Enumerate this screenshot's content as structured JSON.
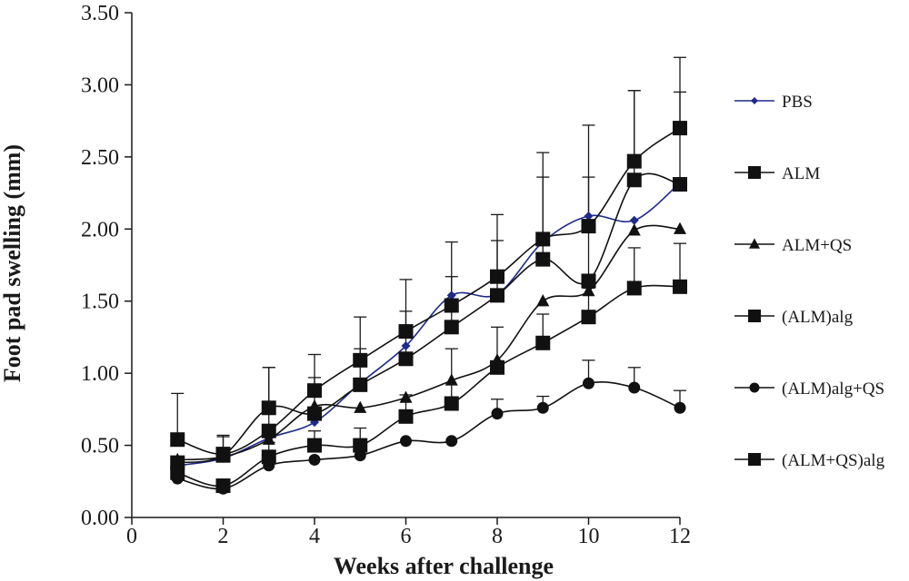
{
  "chart_data": {
    "type": "line",
    "title": "",
    "xlabel": "Weeks after challenge",
    "ylabel": "Foot pad swelling (mm)",
    "xlim": [
      0,
      12
    ],
    "ylim": [
      0,
      3.5
    ],
    "x_ticks": [
      0,
      2,
      4,
      6,
      8,
      10,
      12
    ],
    "y_ticks": [
      0,
      0.5,
      1.0,
      1.5,
      2.0,
      2.5,
      3.0,
      3.5
    ],
    "x_tick_labels": [
      "0",
      "2",
      "4",
      "6",
      "8",
      "10",
      "12"
    ],
    "y_tick_labels": [
      "0.00",
      "0.50",
      "1.00",
      "1.50",
      "2.00",
      "2.50",
      "3.00",
      "3.50"
    ],
    "grid": false,
    "legend_position": "right",
    "x": [
      1,
      2,
      3,
      4,
      5,
      6,
      7,
      8,
      9,
      10,
      11,
      12
    ],
    "series": [
      {
        "name": "PBS",
        "marker": "diamond",
        "color": "#1f2a8a",
        "values": [
          0.36,
          0.41,
          0.55,
          0.66,
          0.93,
          1.19,
          1.54,
          1.55,
          1.91,
          2.09,
          2.06,
          2.32
        ],
        "error": [
          0,
          0,
          0,
          0,
          0,
          0,
          0,
          0,
          0,
          0,
          0,
          0
        ]
      },
      {
        "name": "ALM",
        "marker": "square",
        "color": "#111111",
        "values": [
          0.54,
          0.44,
          0.6,
          0.88,
          1.09,
          1.29,
          1.47,
          1.67,
          1.93,
          2.02,
          2.47,
          2.7
        ],
        "error": [
          0.32,
          0.13,
          0.44,
          0.25,
          0.3,
          0.36,
          0.44,
          0.43,
          0.6,
          0.7,
          0.49,
          0.49
        ]
      },
      {
        "name": "ALM+QS",
        "marker": "triangle",
        "color": "#111111",
        "values": [
          0.4,
          0.42,
          0.54,
          0.77,
          0.76,
          0.83,
          0.95,
          1.09,
          1.5,
          1.57,
          1.99,
          2.0
        ],
        "error": [
          0,
          0,
          0,
          0,
          0,
          0,
          0,
          0,
          0,
          0,
          0,
          0
        ]
      },
      {
        "name": "(ALM)alg",
        "marker": "square",
        "color": "#111111",
        "values": [
          0.38,
          0.43,
          0.76,
          0.72,
          0.92,
          1.1,
          1.32,
          1.54,
          1.79,
          1.64,
          2.34,
          2.31
        ],
        "error": [
          0,
          0.13,
          0.28,
          0.25,
          0.25,
          0.33,
          0.35,
          0.38,
          0.57,
          0.72,
          0.62,
          0.64
        ]
      },
      {
        "name": "(ALM)alg+QS",
        "marker": "circle",
        "color": "#111111",
        "values": [
          0.27,
          0.2,
          0.36,
          0.4,
          0.43,
          0.53,
          0.53,
          0.72,
          0.76,
          0.93,
          0.9,
          0.76
        ],
        "error": [
          0,
          0,
          0,
          0,
          0,
          0,
          0,
          0.1,
          0.08,
          0.16,
          0.14,
          0.12
        ]
      },
      {
        "name": "(ALM+QS)alg",
        "marker": "square",
        "color": "#111111",
        "values": [
          0.31,
          0.22,
          0.42,
          0.5,
          0.5,
          0.7,
          0.79,
          1.04,
          1.21,
          1.39,
          1.59,
          1.6
        ],
        "error": [
          0,
          0,
          0.1,
          0.1,
          0.12,
          0.15,
          0.38,
          0.28,
          0.2,
          0.2,
          0.28,
          0.3
        ]
      }
    ]
  }
}
